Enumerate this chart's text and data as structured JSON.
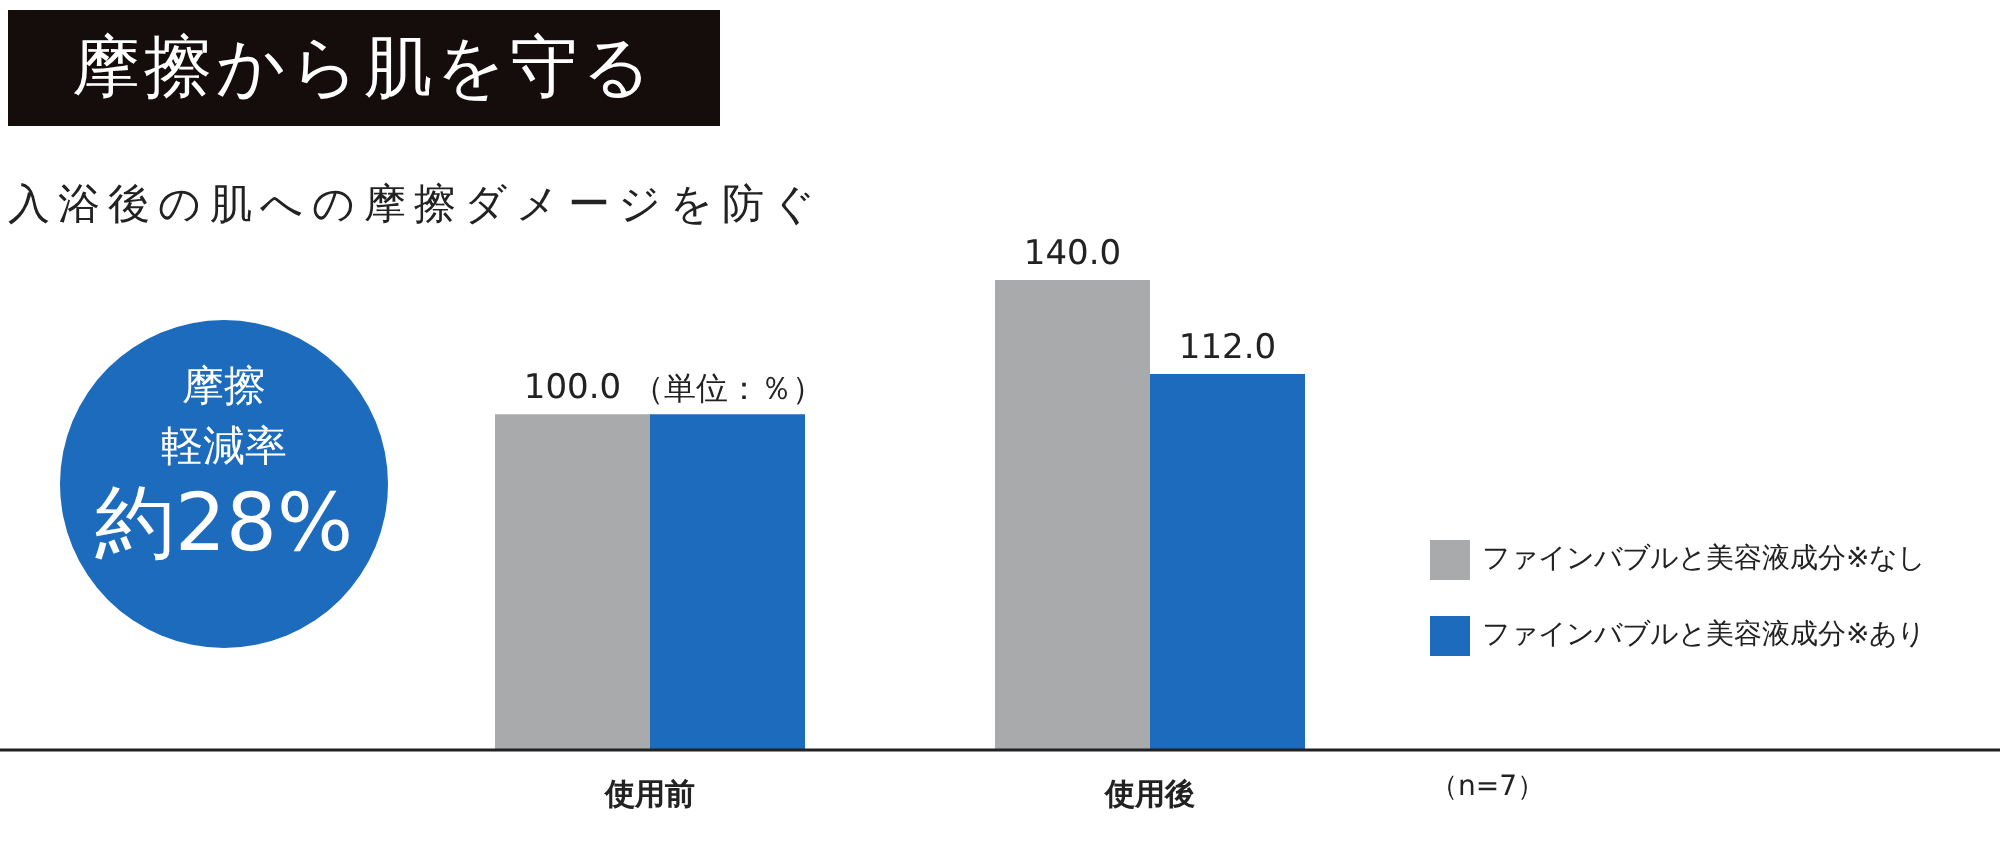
{
  "chart_data": {
    "type": "bar",
    "title": "摩擦から肌を守る",
    "subtitle": "入浴後の肌への摩擦ダメージを防ぐ",
    "categories": [
      "使用前",
      "使用後"
    ],
    "series": [
      {
        "name": "ファインバブルと美容液成分※なし",
        "color": "#a9aaac",
        "values": [
          100.0,
          140.0
        ],
        "value_labels": [
          "100.0",
          "140.0"
        ]
      },
      {
        "name": "ファインバブルと美容液成分※あり",
        "color": "#1c6bbd",
        "values": [
          100.0,
          112.0
        ],
        "value_labels": [
          null,
          "112.0"
        ]
      }
    ],
    "tick_labels": "x",
    "grid": false,
    "legend": "right",
    "annotations": [
      "摩擦",
      "軽減率",
      "約28%",
      {
        "text": "（単位：％）",
        "x": "使用前",
        "y": 100
      },
      "（n=7）"
    ]
  }
}
